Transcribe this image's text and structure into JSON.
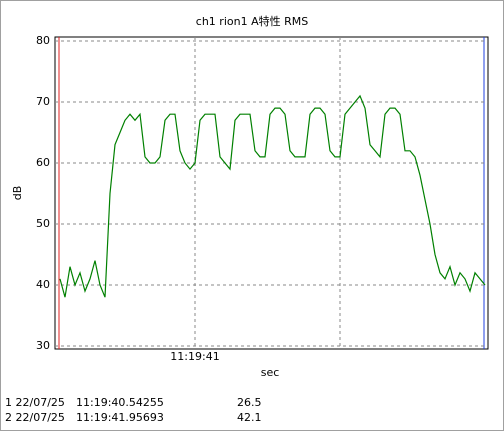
{
  "chart_data": {
    "type": "line",
    "title": "ch1 rion1 A特性 RMS",
    "ylabel": "dB",
    "xlabel": "sec",
    "categories": [
      null,
      null,
      null,
      null,
      null,
      null,
      null,
      null,
      null,
      null,
      null,
      null,
      null,
      null,
      null,
      null,
      null,
      null,
      null,
      null,
      null,
      null,
      null,
      null,
      null,
      null,
      null,
      "11:19:41",
      null,
      null,
      null,
      null,
      null,
      null,
      null,
      null,
      null,
      null,
      null,
      null,
      null,
      null,
      null,
      null,
      null,
      null,
      null,
      null,
      null,
      null,
      null,
      null,
      null,
      null,
      null,
      null,
      null,
      null,
      null,
      null,
      null,
      null,
      null,
      null,
      null,
      null,
      null,
      null,
      null,
      null,
      null,
      null,
      null,
      null,
      null,
      null,
      null,
      null,
      null,
      null,
      null,
      null,
      null,
      null,
      null,
      null
    ],
    "values": [
      41,
      38,
      43,
      40,
      42,
      39,
      41,
      44,
      40,
      38,
      55,
      63,
      65,
      67,
      68,
      67,
      68,
      61,
      60,
      60,
      61,
      67,
      68,
      68,
      62,
      60,
      59,
      60,
      67,
      68,
      68,
      68,
      61,
      60,
      59,
      67,
      68,
      68,
      68,
      62,
      61,
      61,
      68,
      69,
      69,
      68,
      62,
      61,
      61,
      61,
      68,
      69,
      69,
      68,
      62,
      61,
      61,
      68,
      69,
      70,
      71,
      69,
      63,
      62,
      61,
      68,
      69,
      69,
      68,
      62,
      62,
      61,
      58,
      54,
      50,
      45,
      42,
      41,
      43,
      40,
      42,
      41,
      39,
      42,
      41,
      40
    ],
    "color": "#008000",
    "ylim": [
      30,
      80
    ],
    "yticks": [
      30,
      40,
      50,
      60,
      70,
      80
    ],
    "grid": true
  },
  "cursors": [
    {
      "row": "1 22/07/25",
      "time": "11:19:40.54255",
      "value": "26.5"
    },
    {
      "row": "2 22/07/25",
      "time": "11:19:41.95693",
      "value": "42.1"
    }
  ]
}
